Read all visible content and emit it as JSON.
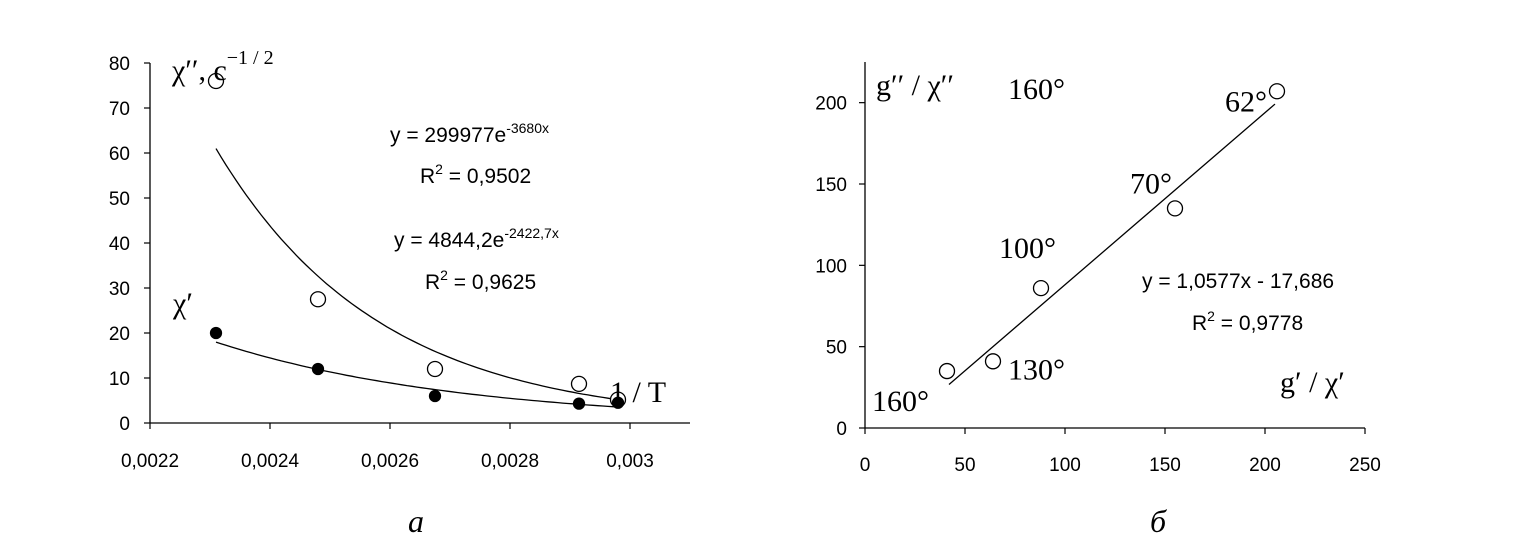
{
  "chart_data": [
    {
      "type": "scatter",
      "panel_label": "а",
      "ylabel": {
        "main": "χ′′, c",
        "sup": "−1 / 2"
      },
      "xlabel": "1 / T",
      "xlim": [
        0.0022,
        0.0031
      ],
      "ylim": [
        0,
        80
      ],
      "xticks": [
        0.0022,
        0.0024,
        0.0026,
        0.0028,
        0.003
      ],
      "xtick_labels": [
        "0,0022",
        "0,0024",
        "0,0026",
        "0,0028",
        "0,003"
      ],
      "yticks": [
        0,
        10,
        20,
        30,
        40,
        50,
        60,
        70,
        80
      ],
      "ytick_labels": [
        "0",
        "10",
        "20",
        "30",
        "40",
        "50",
        "60",
        "70",
        "80"
      ],
      "grid": false,
      "series": [
        {
          "name": "χ′′",
          "marker": "open-circle",
          "x": [
            0.00231,
            0.00248,
            0.002675,
            0.002915,
            0.00298
          ],
          "y": [
            76,
            27.5,
            12,
            8.7,
            5.2
          ],
          "fit": {
            "type": "exponential",
            "a": 299977,
            "b": -3680,
            "x_range": [
              0.00231,
              0.00298
            ]
          },
          "equation": {
            "main": "y = 299977e",
            "sup": "-3680x"
          },
          "r2": {
            "pre": "R",
            "sup": "2",
            "post": " = 0,9502"
          }
        },
        {
          "name": "χ′",
          "marker": "filled-circle",
          "x": [
            0.00231,
            0.00248,
            0.002675,
            0.002915,
            0.00298
          ],
          "y": [
            20,
            12,
            6,
            4.3,
            4.5
          ],
          "fit": {
            "type": "exponential",
            "a": 4844.2,
            "b": -2422.7,
            "x_range": [
              0.00231,
              0.00298
            ]
          },
          "equation": {
            "main": "y = 4844,2e",
            "sup": "-2422,7x"
          },
          "r2": {
            "pre": "R",
            "sup": "2",
            "post": " = 0,9625"
          }
        }
      ]
    },
    {
      "type": "scatter",
      "panel_label": "б",
      "ylabel": "g′′ / χ′′",
      "xlabel": "g′ / χ′",
      "corner_annotation": "160°",
      "xlim": [
        0,
        250
      ],
      "ylim": [
        0,
        225
      ],
      "xticks": [
        0,
        50,
        100,
        150,
        200,
        250
      ],
      "xtick_labels": [
        "0",
        "50",
        "100",
        "150",
        "200",
        "250"
      ],
      "yticks": [
        0,
        50,
        100,
        150,
        200
      ],
      "ytick_labels": [
        "0",
        "50",
        "100",
        "150",
        "200"
      ],
      "grid": false,
      "series": [
        {
          "marker": "open-circle",
          "x": [
            41,
            64,
            88,
            155,
            206
          ],
          "y": [
            35,
            41,
            86,
            135,
            207
          ],
          "point_labels": [
            "160°",
            "130°",
            "100°",
            "70°",
            "62°"
          ],
          "fit": {
            "type": "linear",
            "slope": 1.0577,
            "intercept": -17.686,
            "x_range": [
              42,
              205
            ]
          },
          "equation": "y = 1,0577x - 17,686",
          "r2": {
            "pre": "R",
            "sup": "2",
            "post": " = 0,9778"
          }
        }
      ]
    }
  ]
}
